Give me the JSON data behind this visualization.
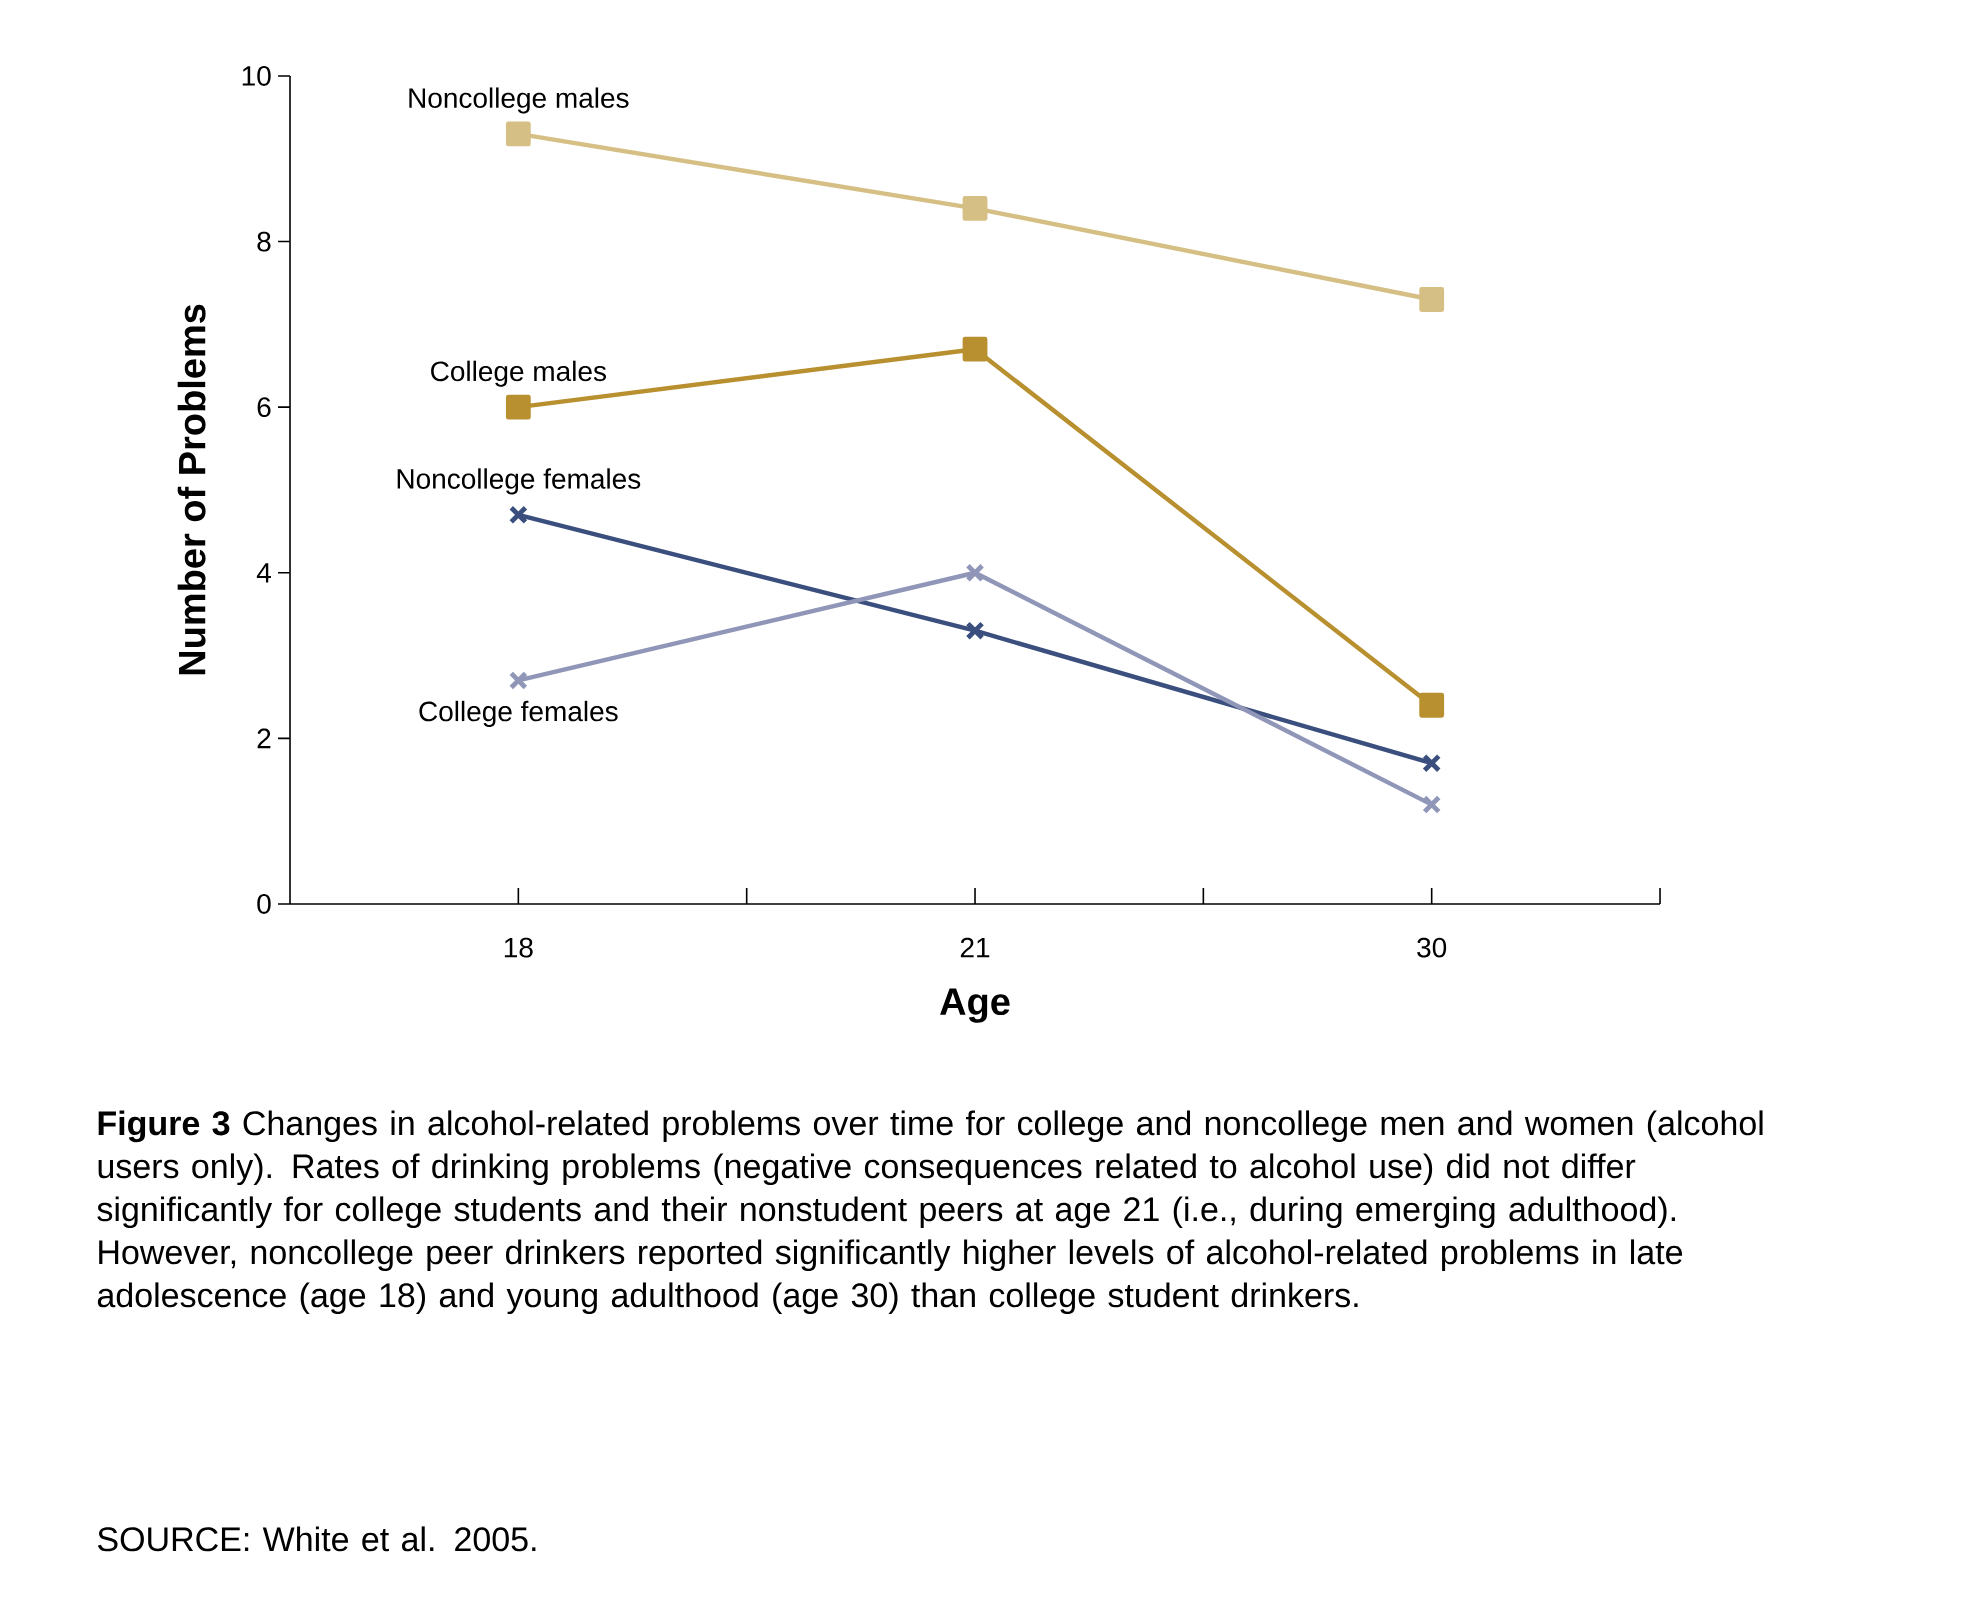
{
  "chart_data": {
    "type": "line",
    "xlabel": "Age",
    "ylabel": "Number of Problems",
    "categories": [
      "18",
      "21",
      "30"
    ],
    "ylim": [
      0,
      10
    ],
    "yticks": [
      0,
      2,
      4,
      6,
      8,
      10
    ],
    "grid": false,
    "legend": false,
    "series": [
      {
        "name": "Noncollege males",
        "color": "#d6bf85",
        "marker": "square",
        "values": [
          9.3,
          8.4,
          7.3
        ]
      },
      {
        "name": "College males",
        "color": "#b8902f",
        "marker": "square",
        "values": [
          6.0,
          6.7,
          2.4
        ]
      },
      {
        "name": "Noncollege females",
        "color": "#3b4f7e",
        "marker": "cross",
        "values": [
          4.7,
          3.3,
          1.7
        ]
      },
      {
        "name": "College females",
        "color": "#9096b8",
        "marker": "cross",
        "values": [
          2.7,
          4.0,
          1.2
        ]
      }
    ],
    "annotations": [
      "**Figure 3** Changes in alcohol-related problems over time for college and noncollege men and women (alcohol users only). Rates of drinking problems (negative consequences related to alcohol use) did not differ significantly for college students and their nonstudent peers at age 21 (i.e., during emerging adulthood). However, noncollege peer drinkers reported significantly higher levels of alcohol-related problems in late adolescence (age 18) and young adulthood (age 30) than college student drinkers.",
      "SOURCE: White et al. 2005."
    ]
  }
}
